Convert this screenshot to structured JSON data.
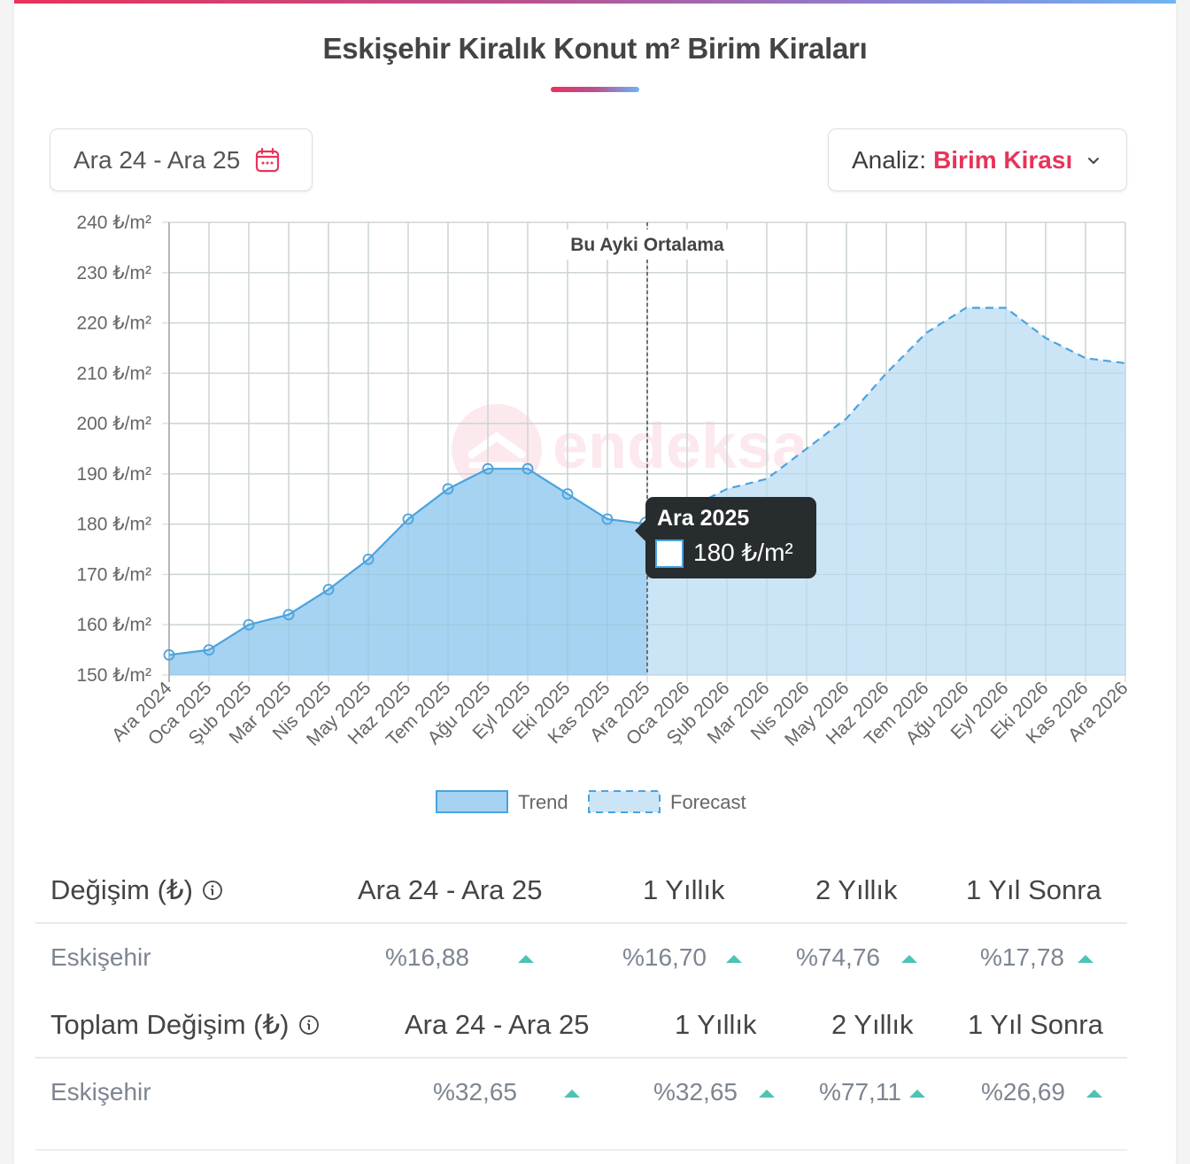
{
  "header": {
    "title": "Eskişehir Kiralık Konut m² Birim Kiraları"
  },
  "controls": {
    "date_range_label": "Ara 24 - Ara 25",
    "date_icon": "calendar-icon",
    "analysis_label": "Analiz:",
    "analysis_value": "Birim Kirası",
    "analysis_icon": "chevron-down-icon"
  },
  "colors": {
    "accent": "#e8335a",
    "trend_line": "#4aa3df",
    "trend_fill": "#a6d3f1",
    "forecast_fill": "#cbe5f7",
    "up_arrow": "#4fc2b4",
    "tooltip_bg": "#272c2f"
  },
  "chart_data": {
    "type": "area",
    "title": "Eskişehir Kiralık Konut m² Birim Kiraları",
    "xlabel": "",
    "ylabel": "₺/m²",
    "ylim": [
      150,
      240
    ],
    "yticks": [
      "150 ₺/m²",
      "160 ₺/m²",
      "170 ₺/m²",
      "180 ₺/m²",
      "190 ₺/m²",
      "200 ₺/m²",
      "210 ₺/m²",
      "220 ₺/m²",
      "230 ₺/m²",
      "240 ₺/m²"
    ],
    "grid": true,
    "legend_position": "bottom",
    "categories": [
      "Ara 2024",
      "Oca 2025",
      "Şub 2025",
      "Mar 2025",
      "Nis 2025",
      "May 2025",
      "Haz 2025",
      "Tem 2025",
      "Ağu 2025",
      "Eyl 2025",
      "Eki 2025",
      "Kas 2025",
      "Ara 2025",
      "Oca 2026",
      "Şub 2026",
      "Mar 2026",
      "Nis 2026",
      "May 2026",
      "Haz 2026",
      "Tem 2026",
      "Ağu 2026",
      "Eyl 2026",
      "Eki 2026",
      "Kas 2026",
      "Ara 2026"
    ],
    "series": [
      {
        "name": "Trend",
        "style": "solid",
        "values": [
          154,
          155,
          160,
          162,
          167,
          173,
          181,
          187,
          191,
          191,
          186,
          181,
          180,
          null,
          null,
          null,
          null,
          null,
          null,
          null,
          null,
          null,
          null,
          null,
          null
        ]
      },
      {
        "name": "Forecast",
        "style": "dashed",
        "values": [
          null,
          null,
          null,
          null,
          null,
          null,
          null,
          null,
          null,
          null,
          null,
          null,
          180,
          183,
          187,
          189,
          195,
          201,
          210,
          218,
          223,
          223,
          217,
          213,
          212
        ]
      }
    ],
    "annotations": [
      {
        "type": "vertical-line",
        "at": "Ara 2025",
        "label": "Bu Ayki Ortalama"
      }
    ],
    "tooltip": {
      "title": "Ara 2025",
      "value": "180 ₺/m²"
    },
    "watermark": "endeksa"
  },
  "legend": [
    {
      "label": "Trend"
    },
    {
      "label": "Forecast"
    }
  ],
  "table_change": {
    "title": "Değişim (₺)",
    "columns": [
      "Ara 24 - Ara 25",
      "1 Yıllık",
      "2 Yıllık",
      "1 Yıl Sonra"
    ],
    "rows": [
      {
        "name": "Eskişehir",
        "values": [
          "%16,88",
          "%16,70",
          "%74,76",
          "%17,78"
        ],
        "trend": [
          "up",
          "up",
          "up",
          "up"
        ]
      }
    ]
  },
  "table_total": {
    "title": "Toplam Değişim (₺)",
    "columns": [
      "Ara 24 - Ara 25",
      "1 Yıllık",
      "2 Yıllık",
      "1 Yıl Sonra"
    ],
    "rows": [
      {
        "name": "Eskişehir",
        "values": [
          "%32,65",
          "%32,65",
          "%77,11",
          "%26,69"
        ],
        "trend": [
          "up",
          "up",
          "up",
          "up"
        ]
      }
    ]
  }
}
